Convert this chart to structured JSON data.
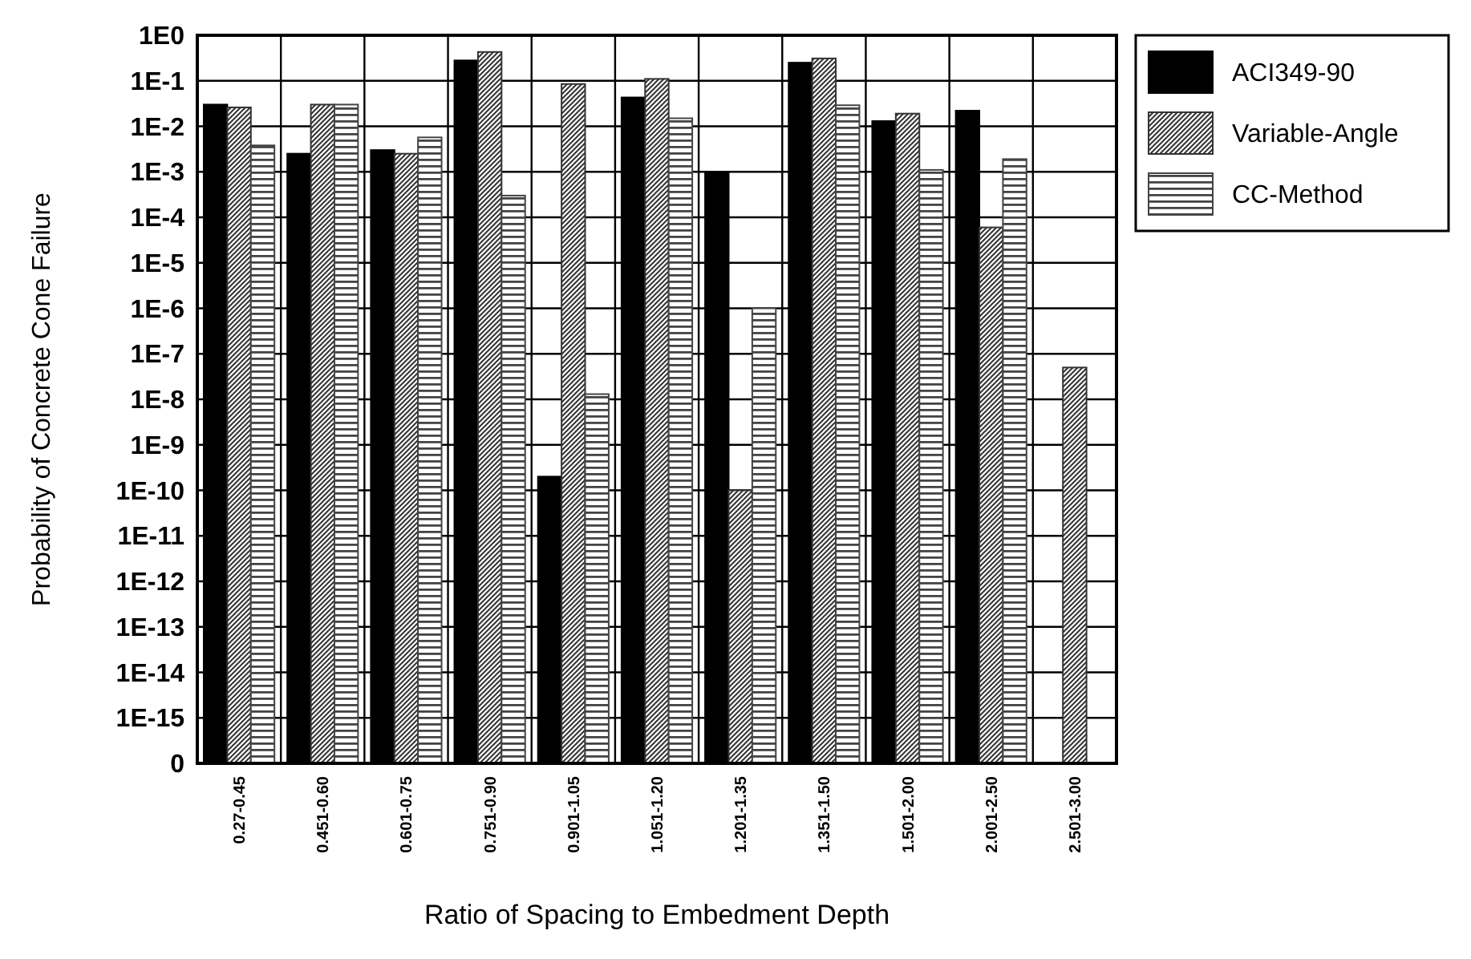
{
  "chart_data": {
    "type": "bar",
    "xlabel": "Ratio of Spacing to Embedment Depth",
    "ylabel": "Probability of Concrete Cone Failure",
    "categories": [
      "0.27-0.45",
      "0.451-0.60",
      "0.601-0.75",
      "0.751-0.90",
      "0.901-1.05",
      "1.051-1.20",
      "1.201-1.35",
      "1.351-1.50",
      "1.501-2.00",
      "2.001-2.50",
      "2.501-3.00"
    ],
    "series": [
      {
        "name": "ACI349-90",
        "color": "#000000",
        "values": [
          0.03,
          0.0025,
          0.003,
          0.28,
          2e-10,
          0.043,
          0.001,
          0.25,
          0.013,
          0.022,
          null
        ]
      },
      {
        "name": "Variable-Angle",
        "color": "#333333",
        "values": [
          0.026,
          0.03,
          0.0025,
          0.43,
          0.085,
          0.11,
          1e-10,
          0.31,
          0.019,
          6e-05,
          5e-08
        ]
      },
      {
        "name": "CC-Method",
        "color": "#444444",
        "values": [
          0.0038,
          0.03,
          0.0057,
          0.0003,
          1.3e-08,
          0.015,
          1e-06,
          0.029,
          0.0011,
          0.0019,
          null
        ]
      }
    ],
    "log": "y",
    "ylim": [
      1e-16,
      1
    ],
    "yticks": [
      {
        "value": 1,
        "label": "1E0"
      },
      {
        "value": 0.1,
        "label": "1E-1"
      },
      {
        "value": 0.01,
        "label": "1E-2"
      },
      {
        "value": 0.001,
        "label": "1E-3"
      },
      {
        "value": 0.0001,
        "label": "1E-4"
      },
      {
        "value": 1e-05,
        "label": "1E-5"
      },
      {
        "value": 1e-06,
        "label": "1E-6"
      },
      {
        "value": 1e-07,
        "label": "1E-7"
      },
      {
        "value": 1e-08,
        "label": "1E-8"
      },
      {
        "value": 1e-09,
        "label": "1E-9"
      },
      {
        "value": 1e-10,
        "label": "1E-10"
      },
      {
        "value": 1e-11,
        "label": "1E-11"
      },
      {
        "value": 1e-12,
        "label": "1E-12"
      },
      {
        "value": 1e-13,
        "label": "1E-13"
      },
      {
        "value": 1e-14,
        "label": "1E-14"
      },
      {
        "value": 1e-15,
        "label": "1E-15"
      },
      {
        "value": 1e-16,
        "label": "0"
      }
    ],
    "grid": true,
    "legend": "top right"
  }
}
